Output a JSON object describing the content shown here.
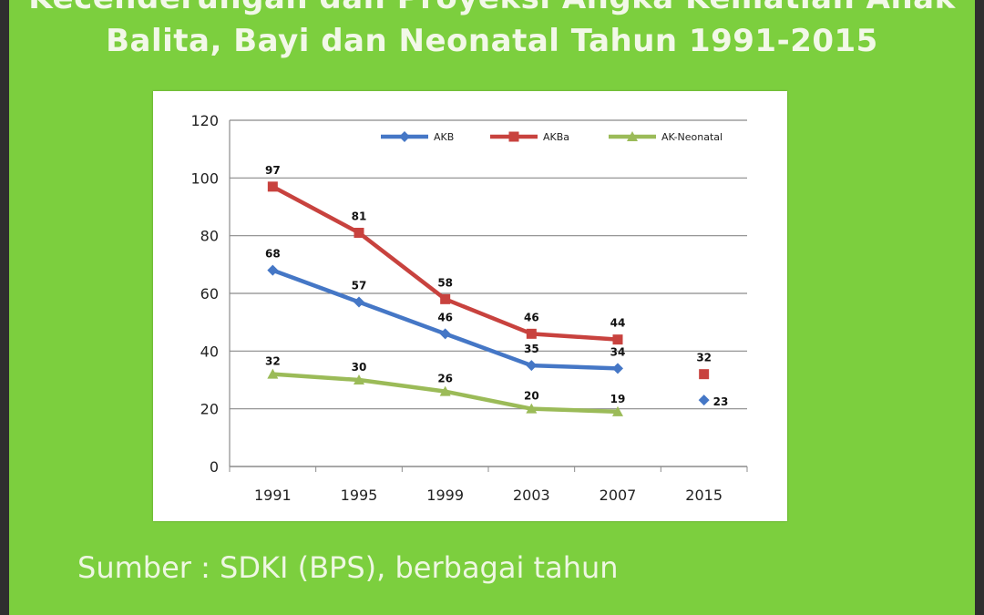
{
  "slide": {
    "title_line1": "Kecenderungan dan Proyeksi Angka Kematian Anak",
    "title_line2": "Balita, Bayi dan Neonatal Tahun 1991-2015",
    "source": "Sumber : SDKI (BPS), berbagai tahun",
    "background_color": "#7ccf3e"
  },
  "chart_data": {
    "type": "line",
    "categories": [
      "1991",
      "1995",
      "1999",
      "2003",
      "2007",
      "2015"
    ],
    "ylim": [
      0,
      120
    ],
    "yticks": [
      0,
      20,
      40,
      60,
      80,
      100,
      120
    ],
    "grid": true,
    "legend_placement": "top",
    "series": [
      {
        "name": "AKB",
        "color": "#4577c6",
        "marker": "diamond",
        "values": [
          68,
          57,
          46,
          35,
          34,
          23
        ],
        "connected_until": 4
      },
      {
        "name": "AKBa",
        "color": "#c8423e",
        "marker": "square",
        "values": [
          97,
          81,
          58,
          46,
          44,
          32
        ],
        "connected_until": 4
      },
      {
        "name": "AK-Neonatal",
        "color": "#9bbb58",
        "marker": "triangle",
        "values": [
          32,
          30,
          26,
          20,
          19,
          null
        ],
        "connected_until": 4
      }
    ]
  }
}
